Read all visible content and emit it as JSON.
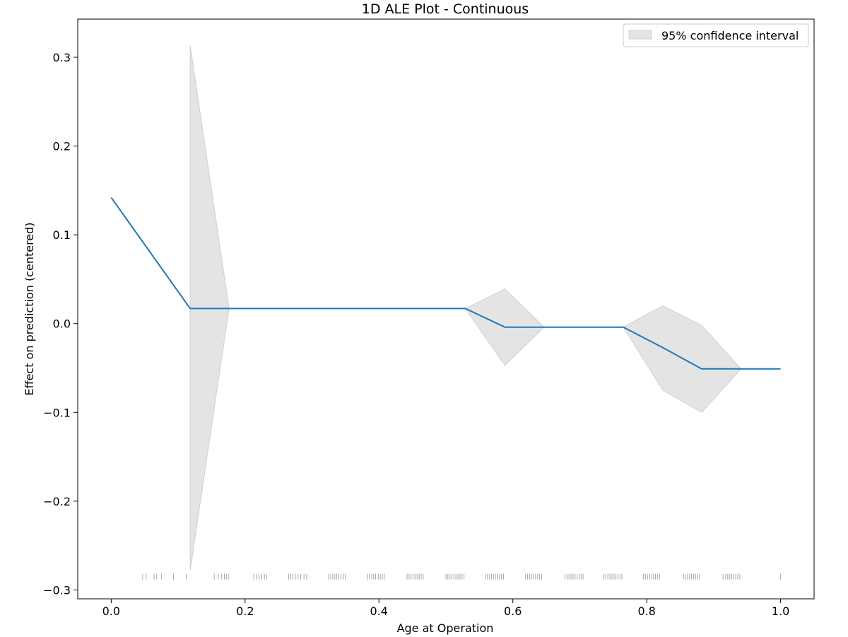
{
  "chart_data": {
    "type": "line",
    "title": "1D ALE Plot - Continuous",
    "xlabel": "Age at Operation",
    "ylabel": "Effect on prediction (centered)",
    "xlim": [
      -0.05,
      1.05
    ],
    "ylim": [
      -0.31,
      0.343
    ],
    "x_ticks": [
      0.0,
      0.2,
      0.4,
      0.6,
      0.8,
      1.0
    ],
    "x_tick_labels": [
      "0.0",
      "0.2",
      "0.4",
      "0.6",
      "0.8",
      "1.0"
    ],
    "y_ticks": [
      0.3,
      0.2,
      0.1,
      0.0,
      -0.1,
      -0.2,
      -0.3
    ],
    "y_tick_labels": [
      "0.3",
      "0.2",
      "0.1",
      "0.0",
      "−0.1",
      "−0.2",
      "−0.3"
    ],
    "grid": false,
    "legend": {
      "position": "top-right",
      "entries": [
        "95% confidence interval"
      ]
    },
    "colors": {
      "line": "#1f77b4",
      "band": "#e4e4e4",
      "band_edge": "#cfcfcf",
      "rug": "#000000"
    },
    "series": [
      {
        "x": [
          0.0,
          0.118,
          0.176,
          0.235,
          0.294,
          0.353,
          0.412,
          0.471,
          0.529,
          0.588,
          0.647,
          0.706,
          0.765,
          0.824,
          0.882,
          0.941,
          1.0
        ],
        "y": [
          0.142,
          0.017,
          0.017,
          0.017,
          0.017,
          0.017,
          0.017,
          0.017,
          0.017,
          -0.004,
          -0.004,
          -0.004,
          -0.004,
          -0.027,
          -0.051,
          -0.051,
          -0.051
        ]
      }
    ],
    "confidence_band": {
      "label": "95% confidence interval",
      "x": [
        0.118,
        0.176,
        0.235,
        0.294,
        0.353,
        0.412,
        0.471,
        0.529,
        0.588,
        0.647,
        0.706,
        0.765,
        0.824,
        0.882,
        0.941
      ],
      "lower": [
        -0.278,
        0.017,
        0.017,
        0.017,
        0.017,
        0.017,
        0.017,
        0.017,
        -0.047,
        -0.004,
        -0.004,
        -0.004,
        -0.075,
        -0.1,
        -0.051
      ],
      "upper": [
        0.313,
        0.017,
        0.017,
        0.017,
        0.017,
        0.017,
        0.017,
        0.017,
        0.039,
        -0.004,
        -0.004,
        -0.004,
        0.02,
        -0.002,
        -0.051
      ]
    },
    "rug": {
      "y": -0.285,
      "x": [
        0.047,
        0.052,
        0.064,
        0.068,
        0.075,
        0.093,
        0.112,
        0.154,
        0.16,
        0.165,
        0.169,
        0.172,
        0.175,
        0.213,
        0.217,
        0.221,
        0.225,
        0.229,
        0.232,
        0.265,
        0.268,
        0.271,
        0.275,
        0.279,
        0.283,
        0.288,
        0.292,
        0.325,
        0.328,
        0.331,
        0.334,
        0.337,
        0.34,
        0.343,
        0.347,
        0.35,
        0.383,
        0.386,
        0.389,
        0.392,
        0.395,
        0.399,
        0.402,
        0.405,
        0.408,
        0.442,
        0.445,
        0.448,
        0.451,
        0.454,
        0.457,
        0.46,
        0.463,
        0.466,
        0.5,
        0.503,
        0.506,
        0.509,
        0.512,
        0.515,
        0.518,
        0.521,
        0.524,
        0.527,
        0.559,
        0.562,
        0.565,
        0.568,
        0.571,
        0.574,
        0.577,
        0.58,
        0.583,
        0.586,
        0.619,
        0.622,
        0.625,
        0.628,
        0.631,
        0.634,
        0.637,
        0.64,
        0.643,
        0.678,
        0.681,
        0.684,
        0.687,
        0.69,
        0.693,
        0.696,
        0.699,
        0.702,
        0.705,
        0.736,
        0.739,
        0.742,
        0.745,
        0.748,
        0.751,
        0.754,
        0.757,
        0.76,
        0.763,
        0.795,
        0.798,
        0.801,
        0.804,
        0.807,
        0.81,
        0.813,
        0.816,
        0.819,
        0.855,
        0.858,
        0.861,
        0.864,
        0.867,
        0.87,
        0.873,
        0.876,
        0.879,
        0.914,
        0.918,
        0.921,
        0.924,
        0.927,
        0.93,
        0.933,
        0.936,
        0.939,
        1.0
      ]
    }
  }
}
